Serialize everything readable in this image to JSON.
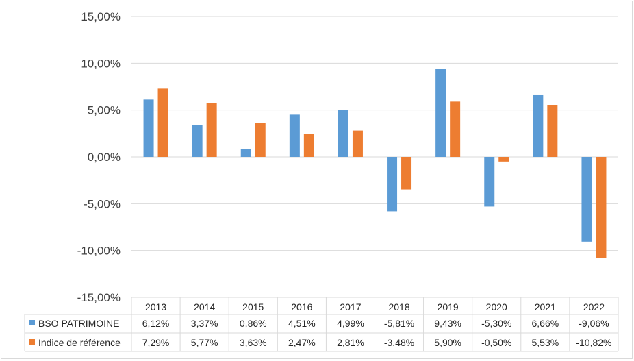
{
  "chart_data": {
    "type": "bar",
    "categories": [
      "2013",
      "2014",
      "2015",
      "2016",
      "2017",
      "2018",
      "2019",
      "2020",
      "2021",
      "2022"
    ],
    "series": [
      {
        "name": "BSO PATRIMOINE",
        "color": "#5b9bd5",
        "values": [
          6.12,
          3.37,
          0.86,
          4.51,
          4.99,
          -5.81,
          9.43,
          -5.3,
          6.66,
          -9.06
        ],
        "labels": [
          "6,12%",
          "3,37%",
          "0,86%",
          "4,51%",
          "4,99%",
          "-5,81%",
          "9,43%",
          "-5,30%",
          "6,66%",
          "-9,06%"
        ]
      },
      {
        "name": "Indice de référence",
        "color": "#ed7d31",
        "values": [
          7.29,
          5.77,
          3.63,
          2.47,
          2.81,
          -3.48,
          5.9,
          -0.5,
          5.53,
          -10.82
        ],
        "labels": [
          "7,29%",
          "5,77%",
          "3,63%",
          "2,47%",
          "2,81%",
          "-3,48%",
          "5,90%",
          "-0,50%",
          "5,53%",
          "-10,82%"
        ]
      }
    ],
    "ylim": [
      -15,
      15
    ],
    "yticks": [
      15,
      10,
      5,
      0,
      -5,
      -10,
      -15
    ],
    "ytick_labels": [
      "15,00%",
      "10,00%",
      "5,00%",
      "0,00%",
      "-5,00%",
      "-10,00%",
      "-15,00%"
    ],
    "grid": true,
    "legend": "data-table"
  }
}
